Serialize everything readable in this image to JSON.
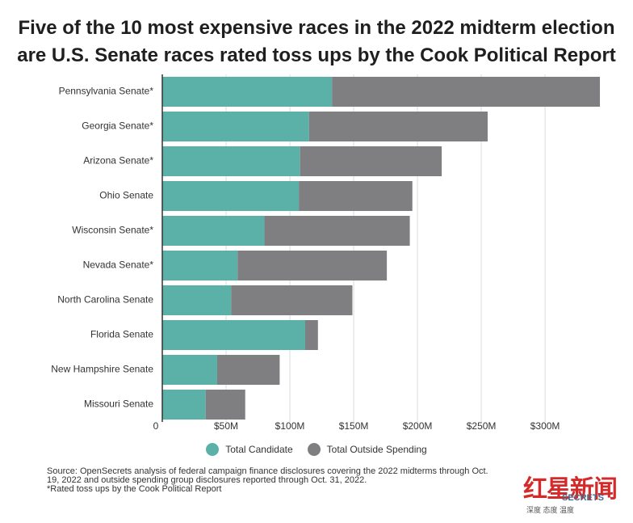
{
  "title_line1": "Five of the 10 most expensive races in the 2022 midterm election",
  "title_line2": "are U.S. Senate races rated toss ups by the Cook Political Report",
  "chart_data": {
    "type": "bar",
    "orientation": "horizontal",
    "stacked": true,
    "categories": [
      "Pennsylvania Senate*",
      "Georgia Senate*",
      "Arizona Senate*",
      "Ohio Senate",
      "Wisconsin Senate*",
      "Nevada Senate*",
      "North Carolina Senate",
      "Florida Senate",
      "New Hampshire Senate",
      "Missouri Senate"
    ],
    "series": [
      {
        "name": "Total Candidate",
        "values": [
          133,
          115,
          108,
          107,
          80,
          59,
          54,
          112,
          43,
          34
        ]
      },
      {
        "name": "Total Outside Spending",
        "values": [
          210,
          140,
          111,
          89,
          114,
          117,
          95,
          10,
          49,
          31
        ]
      }
    ],
    "xlim": [
      0,
      355
    ],
    "xticks": [
      0,
      50,
      100,
      150,
      200,
      250,
      300
    ],
    "xtick_labels": [
      "0",
      "$50M",
      "$100M",
      "$150M",
      "$200M",
      "$250M",
      "$300M"
    ],
    "grid": true,
    "legend_position": "bottom",
    "colors": {
      "Total Candidate": "#5bb0a8",
      "Total Outside Spending": "#7f7f82"
    }
  },
  "legend": {
    "item1": "Total Candidate",
    "item2": "Total Outside Spending"
  },
  "source_line1": "Source: OpenSecrets analysis of federal campaign finance disclosures covering the 2022 midterms through Oct.",
  "source_line2": "19, 2022 and outside spending group disclosures reported through Oct. 31, 2022.",
  "source_line3": "*Rated toss ups by the Cook Political Report",
  "watermark": {
    "main": "红星新闻",
    "secrets": "SECRETS",
    "sub": "深度 态度 温度"
  }
}
